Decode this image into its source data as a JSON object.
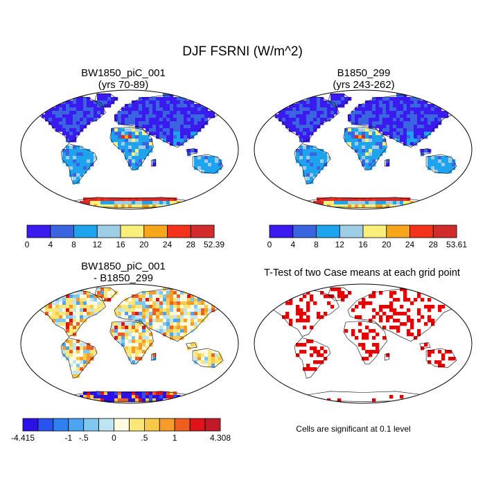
{
  "title": "DJF FSRNI (W/m^2)",
  "panels": [
    {
      "id": "case1",
      "title_line1": "BW1850_piC_001",
      "title_line2": "(yrs 70-89)",
      "colorbar": {
        "colors": [
          "#3b1af0",
          "#3a64e0",
          "#1ea3ee",
          "#9ecde6",
          "#f9ef7a",
          "#f7a51b",
          "#f2321a",
          "#d12b2b"
        ],
        "labels": [
          "0",
          "4",
          "8",
          "12",
          "16",
          "20",
          "24",
          "28",
          "52.39"
        ]
      }
    },
    {
      "id": "case2",
      "title_line1": "B1850_299",
      "title_line2": "(yrs 243-262)",
      "colorbar": {
        "colors": [
          "#3b1af0",
          "#3a64e0",
          "#1ea3ee",
          "#9ecde6",
          "#f9ef7a",
          "#f7a51b",
          "#f2321a",
          "#d12b2b"
        ],
        "labels": [
          "0",
          "4",
          "8",
          "12",
          "16",
          "20",
          "24",
          "28",
          "53.61"
        ]
      }
    },
    {
      "id": "difference",
      "title_line1": "BW1850_piC_001",
      "title_line2": "- B1850_299",
      "colorbar": {
        "colors": [
          "#2b11e6",
          "#2a52ee",
          "#2f80f0",
          "#4ea3f2",
          "#7ec8f0",
          "#bfe4f2",
          "#fffbe0",
          "#fbe678",
          "#f8c848",
          "#f59c2a",
          "#ee5e1e",
          "#e01418",
          "#c21a28"
        ],
        "labels": [
          "-4.415",
          "-1",
          "-.5",
          "0",
          ".5",
          "1",
          "4.308"
        ]
      }
    },
    {
      "id": "ttest",
      "title_line1": "T-Test of two Case means at each grid point",
      "note": "Cells are significant at 0.1 level"
    }
  ]
}
